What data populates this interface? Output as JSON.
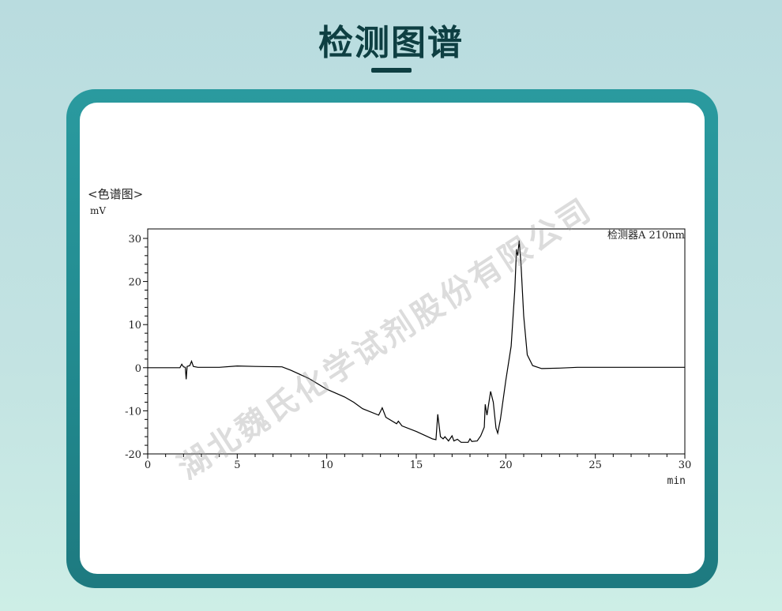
{
  "header": {
    "title": "检测图谱"
  },
  "colors": {
    "title": "#0e3f42",
    "frame": "#2a9a9f",
    "trace": "#000000"
  },
  "watermark": "湖北魏氏化学试剂股份有限公司",
  "chart_data": {
    "type": "line",
    "title": "<色谱图>",
    "ylabel": "mV",
    "xlabel": "min",
    "annotation": "检测器A 210nm",
    "xlim": [
      0,
      30
    ],
    "ylim": [
      -20,
      32
    ],
    "xticks": [
      0,
      5,
      10,
      15,
      20,
      25,
      30
    ],
    "yticks": [
      -20,
      -10,
      0,
      10,
      20,
      30
    ],
    "grid": false,
    "series": [
      {
        "points": [
          [
            0,
            0
          ],
          [
            1.8,
            0
          ],
          [
            1.9,
            0.8
          ],
          [
            2.0,
            0.2
          ],
          [
            2.1,
            0.1
          ],
          [
            2.15,
            -2.7
          ],
          [
            2.2,
            0.3
          ],
          [
            2.35,
            0.5
          ],
          [
            2.45,
            1.5
          ],
          [
            2.55,
            0.3
          ],
          [
            2.8,
            0.1
          ],
          [
            4,
            0.1
          ],
          [
            5,
            0.4
          ],
          [
            6,
            0.3
          ],
          [
            7.5,
            0.2
          ],
          [
            8,
            -0.6
          ],
          [
            9,
            -2.5
          ],
          [
            10,
            -5
          ],
          [
            11,
            -6.8
          ],
          [
            11.5,
            -8
          ],
          [
            12,
            -9.5
          ],
          [
            12.9,
            -11
          ],
          [
            13.1,
            -9.3
          ],
          [
            13.3,
            -11.5
          ],
          [
            13.9,
            -13
          ],
          [
            14.0,
            -12.4
          ],
          [
            14.2,
            -13.5
          ],
          [
            15,
            -14.8
          ],
          [
            15.9,
            -16.5
          ],
          [
            16.1,
            -16.7
          ],
          [
            16.2,
            -10.8
          ],
          [
            16.35,
            -16
          ],
          [
            16.5,
            -16.5
          ],
          [
            16.6,
            -16
          ],
          [
            16.8,
            -17
          ],
          [
            17.0,
            -15.8
          ],
          [
            17.1,
            -17
          ],
          [
            17.3,
            -16.6
          ],
          [
            17.5,
            -17.3
          ],
          [
            17.9,
            -17.3
          ],
          [
            18.0,
            -16.5
          ],
          [
            18.1,
            -17.1
          ],
          [
            18.4,
            -17
          ],
          [
            18.6,
            -15.8
          ],
          [
            18.8,
            -13.8
          ],
          [
            18.85,
            -8.5
          ],
          [
            18.95,
            -11
          ],
          [
            19.15,
            -5.5
          ],
          [
            19.3,
            -8
          ],
          [
            19.45,
            -14
          ],
          [
            19.55,
            -15.2
          ],
          [
            19.7,
            -12
          ],
          [
            20.0,
            -3
          ],
          [
            20.3,
            5
          ],
          [
            20.5,
            18
          ],
          [
            20.6,
            27.5
          ],
          [
            20.67,
            26
          ],
          [
            20.75,
            29.5
          ],
          [
            20.85,
            24
          ],
          [
            21.0,
            12
          ],
          [
            21.2,
            3
          ],
          [
            21.5,
            0.5
          ],
          [
            22,
            -0.2
          ],
          [
            23,
            -0.1
          ],
          [
            24,
            0.1
          ],
          [
            30,
            0.1
          ]
        ]
      }
    ]
  }
}
